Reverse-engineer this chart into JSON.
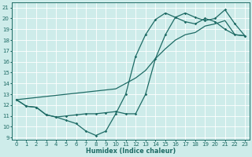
{
  "xlabel": "Humidex (Indice chaleur)",
  "xlim": [
    -0.5,
    23.5
  ],
  "ylim": [
    8.8,
    21.5
  ],
  "yticks": [
    9,
    10,
    11,
    12,
    13,
    14,
    15,
    16,
    17,
    18,
    19,
    20,
    21
  ],
  "xticks": [
    0,
    1,
    2,
    3,
    4,
    5,
    6,
    7,
    8,
    9,
    10,
    11,
    12,
    13,
    14,
    15,
    16,
    17,
    18,
    19,
    20,
    21,
    22,
    23
  ],
  "bg_color": "#ceecea",
  "line_color": "#1e6b65",
  "grid_color": "#ffffff",
  "line1_x": [
    0,
    1,
    2,
    3,
    4,
    5,
    6,
    7,
    8,
    9,
    10,
    11,
    12,
    13,
    14,
    15,
    16,
    17,
    18,
    19,
    20,
    21,
    22,
    23
  ],
  "line1_y": [
    12.5,
    11.9,
    11.8,
    11.1,
    10.9,
    10.6,
    10.3,
    9.6,
    9.2,
    9.6,
    11.2,
    13.0,
    16.5,
    18.5,
    19.9,
    20.5,
    20.1,
    19.7,
    19.5,
    20.0,
    19.7,
    19.0,
    18.5,
    18.4
  ],
  "line2_x": [
    0,
    1,
    2,
    3,
    4,
    5,
    6,
    7,
    8,
    9,
    10,
    11,
    12,
    13,
    14,
    15,
    16,
    17,
    18,
    19,
    20,
    21,
    22,
    23
  ],
  "line2_y": [
    12.5,
    11.9,
    11.8,
    11.1,
    10.9,
    11.0,
    11.1,
    11.2,
    11.2,
    11.3,
    11.4,
    11.2,
    11.2,
    13.0,
    16.3,
    18.5,
    20.1,
    20.5,
    20.1,
    19.8,
    20.0,
    20.8,
    19.5,
    18.4
  ],
  "line3_x": [
    0,
    10,
    11,
    12,
    13,
    14,
    15,
    16,
    17,
    18,
    19,
    20,
    21,
    22,
    23
  ],
  "line3_y": [
    12.5,
    13.5,
    14.0,
    14.5,
    15.2,
    16.3,
    17.2,
    18.0,
    18.5,
    18.7,
    19.3,
    19.5,
    19.8,
    18.5,
    18.4
  ]
}
